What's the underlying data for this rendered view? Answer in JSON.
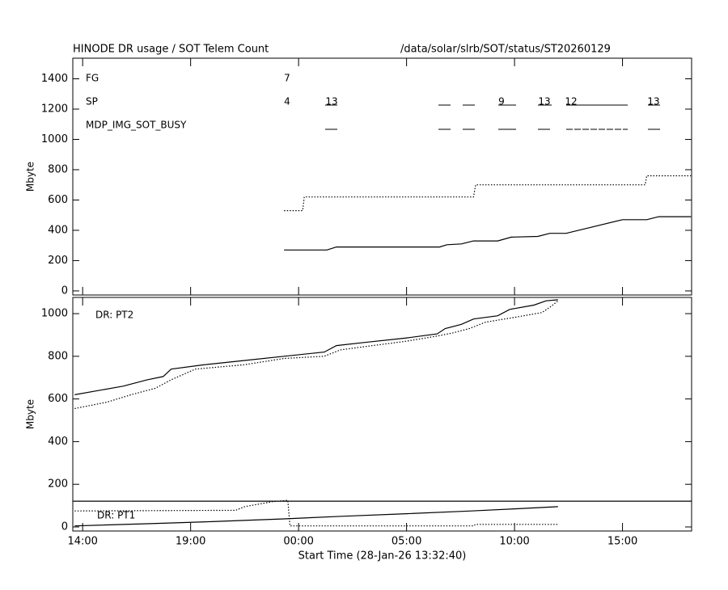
{
  "chart_data": [
    {
      "type": "line",
      "title": "HINODE DR usage / SOT Telem Count",
      "subtitle": "/data/solar/slrb/SOT/status/ST20260129",
      "ylabel": "Mbyte",
      "xlim": [
        13.544,
        42.2
      ],
      "ylim": [
        -27,
        1536
      ],
      "xticks": [
        14,
        19,
        24,
        29,
        34,
        39
      ],
      "yticks": [
        0,
        200,
        400,
        600,
        800,
        1000,
        1200,
        1400
      ],
      "annotations": [
        "FG",
        "SP",
        "MDP_IMG_SOT_BUSY",
        "7",
        "4",
        "13",
        "9",
        "13",
        "12",
        "13"
      ],
      "series": [
        {
          "color": "#000000",
          "dashed": false,
          "x": [
            23.33,
            25.31,
            25.75,
            30.53,
            30.87,
            31.54,
            32.1,
            33.22,
            33.85,
            35.08,
            35.64,
            36.39,
            39.0,
            40.12,
            40.68,
            42.17
          ],
          "values": [
            270,
            270,
            290,
            290,
            305,
            310,
            330,
            330,
            355,
            360,
            380,
            380,
            470,
            470,
            490,
            490
          ]
        },
        {
          "color": "#000000",
          "dashed": true,
          "x": [
            23.33,
            24.19,
            24.26,
            32.1,
            32.2,
            40.05,
            40.12,
            42.17
          ],
          "values": [
            530,
            530,
            620,
            620,
            700,
            700,
            760,
            760
          ]
        }
      ]
    },
    {
      "type": "line",
      "ylabel": "Mbyte",
      "xlabel": "Start Time (28-Jan-26 13:32:40)",
      "xlim": [
        13.544,
        42.2
      ],
      "ylim": [
        -19,
        1076
      ],
      "xticks": [
        {
          "value": 14,
          "label": "14:00"
        },
        {
          "value": 19,
          "label": "19:00"
        },
        {
          "value": 24,
          "label": "00:00"
        },
        {
          "value": 29,
          "label": "05:00"
        },
        {
          "value": 34,
          "label": "10:00"
        },
        {
          "value": 39,
          "label": "15:00"
        }
      ],
      "yticks": [
        0,
        200,
        400,
        600,
        800,
        1000
      ],
      "annotations": [
        "DR: PT2",
        "DR: PT1"
      ],
      "series": [
        {
          "color": "#000000",
          "dashed": false,
          "x": [
            13.63,
            15.87,
            16.99,
            17.73,
            18.1,
            19.6,
            21.46,
            23.33,
            25.19,
            25.75,
            27.06,
            28.93,
            30.42,
            30.79,
            31.54,
            32.1,
            33.22,
            33.78,
            34.9,
            35.46,
            36.01
          ],
          "values": [
            620,
            660,
            690,
            705,
            740,
            760,
            780,
            800,
            820,
            850,
            865,
            885,
            905,
            930,
            950,
            975,
            990,
            1020,
            1040,
            1060,
            1065
          ]
        },
        {
          "color": "#000000",
          "dashed": true,
          "x": [
            13.63,
            15.12,
            16.24,
            17.36,
            18.1,
            19.22,
            21.46,
            23.33,
            25.19,
            25.94,
            27.43,
            28.93,
            30.42,
            31.16,
            31.91,
            32.66,
            34.15,
            35.27,
            35.64,
            36.01
          ],
          "values": [
            555,
            585,
            620,
            650,
            690,
            740,
            760,
            790,
            800,
            830,
            850,
            870,
            895,
            910,
            930,
            960,
            985,
            1005,
            1030,
            1060
          ]
        },
        {
          "color": "#000000",
          "dashed": false,
          "x": [
            13.544,
            42.2
          ],
          "values": [
            121,
            121
          ]
        },
        {
          "color": "#000000",
          "dashed": false,
          "x": [
            13.63,
            17.0,
            20.0,
            23.33,
            26.0,
            29.0,
            32.0,
            34.0,
            36.01
          ],
          "values": [
            5,
            15,
            25,
            38,
            50,
            62,
            75,
            85,
            95
          ]
        },
        {
          "color": "#000000",
          "dashed": true,
          "x": [
            13.63,
            21.09,
            21.5,
            22.77,
            23.5,
            23.6,
            32.1,
            32.2,
            36.01
          ],
          "values": [
            75,
            78,
            95,
            118,
            125,
            5,
            5,
            12,
            12
          ]
        }
      ]
    }
  ]
}
